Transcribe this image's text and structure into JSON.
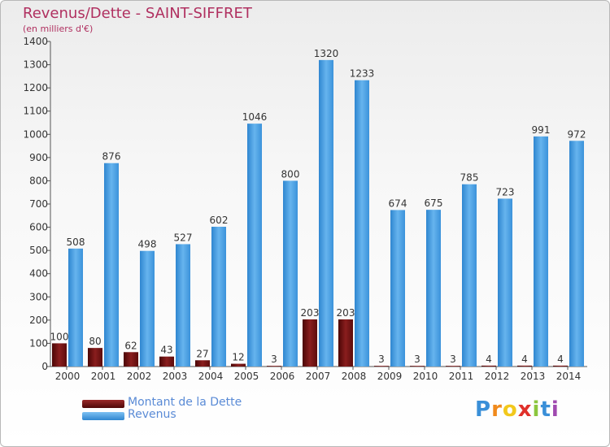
{
  "chart_data": {
    "type": "bar",
    "title": "Revenus/Dette - SAINT-SIFFRET",
    "subtitle": "(en milliers d'€)",
    "categories": [
      "2000",
      "2001",
      "2002",
      "2003",
      "2004",
      "2005",
      "2006",
      "2007",
      "2008",
      "2009",
      "2010",
      "2011",
      "2012",
      "2013",
      "2014"
    ],
    "series": [
      {
        "name": "Montant de la Dette",
        "color": "#6e1010",
        "values": [
          100,
          80,
          62,
          43,
          27,
          12,
          3,
          203,
          203,
          3,
          3,
          3,
          4,
          4,
          4
        ]
      },
      {
        "name": "Revenus",
        "color": "#4a9de0",
        "values": [
          508,
          876,
          498,
          527,
          602,
          1046,
          800,
          1320,
          1233,
          674,
          675,
          785,
          723,
          991,
          972
        ]
      }
    ],
    "ylim": [
      0,
      1400
    ],
    "yticks": [
      0,
      100,
      200,
      300,
      400,
      500,
      600,
      700,
      800,
      900,
      1000,
      1100,
      1200,
      1300,
      1400
    ],
    "grid": false,
    "legend": "bottom-left"
  },
  "branding": {
    "logo_letters": [
      "P",
      "r",
      "o",
      "x",
      "i",
      "t",
      "i"
    ]
  }
}
